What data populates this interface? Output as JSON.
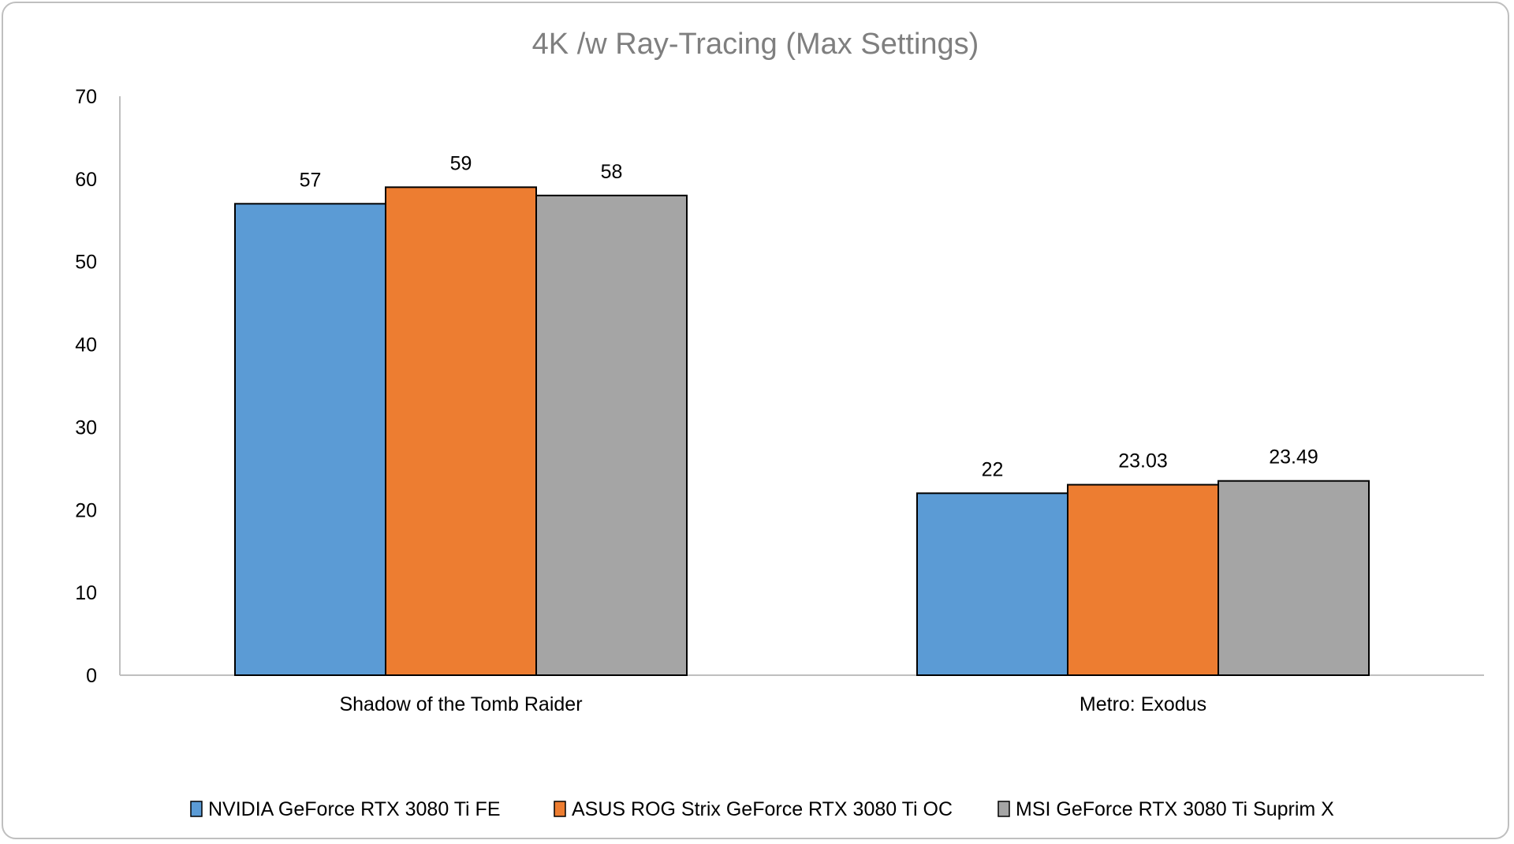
{
  "chart_data": {
    "type": "bar",
    "title": "4K /w Ray-Tracing (Max Settings)",
    "xlabel": "",
    "ylabel": "",
    "categories": [
      "Shadow of the Tomb Raider",
      "Metro: Exodus"
    ],
    "series": [
      {
        "name": "NVIDIA GeForce RTX 3080 Ti FE",
        "color": "#5b9bd5",
        "values": [
          57,
          22
        ],
        "labels": [
          "57",
          "22"
        ]
      },
      {
        "name": "ASUS ROG Strix GeForce RTX 3080 Ti OC",
        "color": "#ed7d31",
        "values": [
          59,
          23.03
        ],
        "labels": [
          "59",
          "23.03"
        ]
      },
      {
        "name": "MSI GeForce RTX 3080 Ti Suprim X",
        "color": "#a5a5a5",
        "values": [
          58,
          23.49
        ],
        "labels": [
          "58",
          "23.49"
        ]
      }
    ],
    "ylim": [
      0,
      70
    ],
    "yticks": [
      "0",
      "10",
      "20",
      "30",
      "40",
      "50",
      "60",
      "70"
    ],
    "grid": false,
    "legend_position": "bottom"
  }
}
